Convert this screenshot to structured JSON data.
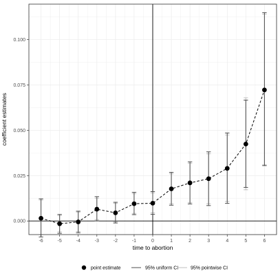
{
  "chart_data": {
    "type": "line",
    "title": "",
    "xlabel": "time to abortion",
    "ylabel": "coefficient estimates",
    "xlim": [
      -6.65,
      6.65
    ],
    "ylim": [
      -0.0075,
      0.1195
    ],
    "x_ticks": [
      "-6",
      "-5",
      "-4",
      "-3",
      "-2",
      "-1",
      "0",
      "1",
      "2",
      "3",
      "4",
      "5",
      "6"
    ],
    "y_ticks": [
      "0.000",
      "0.025",
      "0.050",
      "0.075",
      "0.100"
    ],
    "grid": true,
    "reference_lines": {
      "x": 0,
      "y": 0
    },
    "legend_position": "bottom",
    "legend": {
      "point": "point estimate",
      "uniform": "95% uniform CI",
      "pointwise": "95% pointwise CI"
    },
    "colors": {
      "point": "#000000",
      "uniform_ci": "#4d4d4d",
      "pointwise_ci": "#bfbfbf",
      "grid": "#ebebeb",
      "panel_border": "#333333"
    },
    "series": [
      {
        "name": "point estimate",
        "x": [
          -6,
          -5,
          -4,
          -3,
          -2,
          -1,
          0,
          1,
          2,
          3,
          4,
          5,
          6
        ],
        "y": [
          0.0015,
          -0.0015,
          -0.0005,
          0.0065,
          0.0045,
          0.0095,
          0.0098,
          0.0177,
          0.021,
          0.0233,
          0.029,
          0.0424,
          0.0722
        ],
        "uniform_ci_lower": [
          -0.0088,
          -0.0068,
          -0.0065,
          0.0001,
          -0.0011,
          0.0035,
          0.0037,
          0.0087,
          0.0094,
          0.0085,
          0.0097,
          0.0185,
          0.0305
        ],
        "uniform_ci_upper": [
          0.0122,
          0.0036,
          0.0054,
          0.0134,
          0.0103,
          0.0158,
          0.0162,
          0.0268,
          0.0326,
          0.0381,
          0.0485,
          0.0666,
          0.1148
        ],
        "pointwise_ci_lower": [
          -0.0075,
          -0.006,
          -0.0058,
          0.0008,
          -0.0005,
          0.0042,
          0.0045,
          0.0095,
          0.0102,
          0.0095,
          0.0108,
          0.0172,
          0.031
        ],
        "pointwise_ci_upper": [
          0.0115,
          0.003,
          0.0049,
          0.0125,
          0.0097,
          0.015,
          0.0155,
          0.026,
          0.0318,
          0.037,
          0.0474,
          0.0679,
          0.114
        ]
      }
    ]
  }
}
